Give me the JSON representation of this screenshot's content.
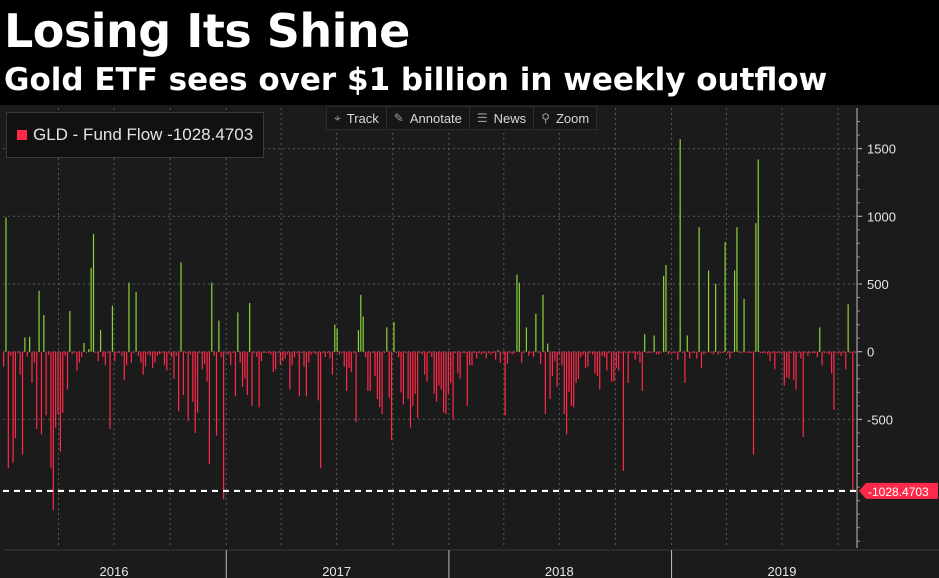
{
  "title": "Losing Its Shine",
  "subtitle": "Gold ETF sees over $1 billion in weekly outflow",
  "toolbar": {
    "track": "Track",
    "annotate": "Annotate",
    "news": "News",
    "zoom": "Zoom",
    "track_icon": "crosshair-icon",
    "annotate_icon": "pencil-icon",
    "news_icon": "news-icon",
    "zoom_icon": "magnifier-icon"
  },
  "legend": {
    "label": "GLD - Fund Flow -1028.4703",
    "color": "#ff2a4a"
  },
  "colors": {
    "positive": "#8bd43c",
    "negative": "#ff2a4a",
    "background": "#1b1b1b",
    "grid": "#5a5a5a",
    "reference_line": "#ffffff"
  },
  "chart_data": {
    "type": "bar",
    "title": "",
    "series": [
      {
        "name": "GLD - Fund Flow",
        "x_start": "2016-01-01",
        "x_end": "2019-11-01",
        "values": [
          -110,
          990,
          -860,
          -30,
          -820,
          -640,
          -10,
          -170,
          -760,
          105,
          -35,
          110,
          -230,
          -80,
          -570,
          450,
          -610,
          270,
          -470,
          -25,
          -860,
          -1170,
          -560,
          -460,
          -740,
          -450,
          -30,
          -280,
          300,
          -20,
          -10,
          -140,
          -80,
          -40,
          65,
          -10,
          20,
          620,
          870,
          -10,
          -70,
          160,
          -40,
          -100,
          -10,
          -570,
          340,
          -70,
          -10,
          -10,
          -30,
          -210,
          -100,
          510,
          -80,
          -10,
          440,
          -30,
          -80,
          -170,
          -110,
          -20,
          -30,
          -120,
          -80,
          -30,
          -20,
          -10,
          -100,
          -140,
          -10,
          -40,
          -200,
          -30,
          -440,
          660,
          -320,
          -10,
          -510,
          -20,
          -370,
          -600,
          -450,
          -10,
          -130,
          -90,
          -220,
          -830,
          510,
          -30,
          -620,
          230,
          -40,
          -1090,
          -10,
          -20,
          -100,
          -10,
          -330,
          290,
          -80,
          -260,
          -200,
          -320,
          360,
          -400,
          -10,
          -40,
          -410,
          -70,
          -10,
          -10,
          -10,
          -20,
          -150,
          -130,
          -10,
          -100,
          -70,
          -50,
          -20,
          -280,
          -100,
          -40,
          -10,
          -330,
          -10,
          -110,
          -330,
          -80,
          -20,
          -10,
          -20,
          -360,
          -860,
          -10,
          -40,
          -10,
          -50,
          -170,
          200,
          170,
          -20,
          -10,
          -110,
          -290,
          -120,
          -150,
          -10,
          -520,
          160,
          420,
          260,
          -40,
          -290,
          -290,
          -10,
          -180,
          -350,
          -410,
          -460,
          -10,
          180,
          -340,
          -650,
          220,
          -10,
          -40,
          -300,
          -390,
          -10,
          -350,
          -560,
          -400,
          -310,
          -490,
          -10,
          -20,
          -170,
          -220,
          -10,
          -40,
          -310,
          -370,
          -250,
          -280,
          -450,
          -460,
          -310,
          -230,
          -500,
          -10,
          -160,
          -200,
          -10,
          -10,
          -400,
          -100,
          -100,
          -10,
          -50,
          -10,
          -20,
          -10,
          -50,
          -10,
          -20,
          -10,
          -60,
          10,
          -80,
          -10,
          -470,
          -90,
          -10,
          -20,
          -10,
          570,
          510,
          -80,
          -10,
          180,
          -30,
          -10,
          -40,
          280,
          -10,
          -90,
          420,
          -460,
          60,
          -350,
          -180,
          -70,
          -260,
          -20,
          -100,
          -460,
          -610,
          -300,
          -400,
          -410,
          -230,
          -200,
          -40,
          -20,
          -120,
          -110,
          -10,
          -20,
          -160,
          -180,
          -280,
          -30,
          -40,
          -140,
          -10,
          -220,
          -220,
          -120,
          -140,
          -10,
          -880,
          -10,
          -230,
          -10,
          -10,
          -60,
          -20,
          -80,
          -290,
          130,
          -10,
          -10,
          -10,
          120,
          -20,
          -20,
          -10,
          560,
          640,
          -20,
          -10,
          -10,
          -10,
          -60,
          1570,
          -10,
          -230,
          120,
          -50,
          -10,
          -10,
          -50,
          920,
          -120,
          -20,
          -10,
          600,
          -10,
          -20,
          500,
          -20,
          -10,
          -10,
          810,
          -10,
          -50,
          -10,
          600,
          920,
          -10,
          -10,
          390,
          -10,
          -10,
          -10,
          -760,
          950,
          1420,
          -10,
          -10,
          -10,
          -20,
          -70,
          -10,
          -130,
          -10,
          -10,
          -10,
          -250,
          -190,
          -200,
          -10,
          -210,
          -280,
          -10,
          -50,
          -630,
          -10,
          -30,
          -10,
          -10,
          -10,
          -40,
          180,
          -100,
          -10,
          -10,
          -20,
          -160,
          -430,
          -10,
          -10,
          -30,
          -10,
          -130,
          350,
          -10,
          -1028.4703,
          -10
        ]
      }
    ],
    "xlabel": "",
    "ylabel": "",
    "x_tick_labels": [
      "2016",
      "2017",
      "2018",
      "2019"
    ],
    "y_tick_labels": [
      "1500",
      "1000",
      "500",
      "0",
      "-500"
    ],
    "yticks": [
      1500,
      1000,
      500,
      0,
      -500
    ],
    "ylim": [
      -1450,
      1800
    ],
    "reference_line": {
      "value": -1028.4703,
      "label": "-1028.4703",
      "style": "dashed"
    },
    "grid": true,
    "legend_position": "top-left"
  }
}
